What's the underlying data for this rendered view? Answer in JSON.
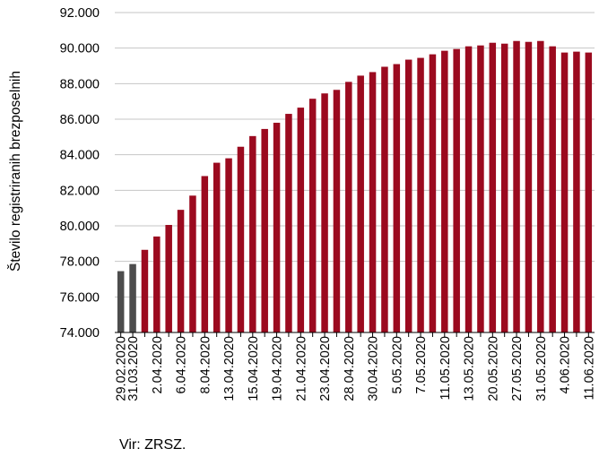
{
  "chart_data": {
    "type": "bar",
    "title": "",
    "xlabel": "",
    "ylabel": "Število registriranih brezposelnih",
    "ylim": [
      74000,
      92000
    ],
    "ytick_step": 2000,
    "ytick_labels": [
      "74.000",
      "76.000",
      "78.000",
      "80.000",
      "82.000",
      "84.000",
      "86.000",
      "88.000",
      "90.000",
      "92.000"
    ],
    "grid": true,
    "legend": "none",
    "categories": [
      "29.02.2020",
      "31.03.2020",
      "",
      "2.04.2020",
      "",
      "6.04.2020",
      "",
      "8.04.2020",
      "",
      "13.04.2020",
      "",
      "15.04.2020",
      "",
      "19.04.2020",
      "",
      "21.04.2020",
      "",
      "23.04.2020",
      "",
      "28.04.2020",
      "",
      "30.04.2020",
      "",
      "5.05.2020",
      "",
      "7.05.2020",
      "",
      "11.05.2020",
      "",
      "13.05.2020",
      "",
      "20.05.2020",
      "",
      "27.05.2020",
      "",
      "31.05.2020",
      "",
      "4.06.2020",
      "",
      "11.06.2020"
    ],
    "values": [
      77450,
      77850,
      78650,
      79400,
      80050,
      80900,
      81700,
      82800,
      83550,
      83800,
      84450,
      85050,
      85450,
      85800,
      86300,
      86650,
      87150,
      87450,
      87650,
      88100,
      88450,
      88650,
      88950,
      89100,
      89350,
      89450,
      89650,
      89850,
      89950,
      90100,
      90150,
      90300,
      90250,
      90400,
      90350,
      90400,
      90100,
      89750,
      89800,
      89750
    ],
    "colors": {
      "highlight": "#9b0a1f",
      "baseline": "#4d4d4d",
      "grid": "#c6c6c6"
    },
    "series_colors": [
      "baseline",
      "baseline",
      "highlight",
      "highlight",
      "highlight",
      "highlight",
      "highlight",
      "highlight",
      "highlight",
      "highlight",
      "highlight",
      "highlight",
      "highlight",
      "highlight",
      "highlight",
      "highlight",
      "highlight",
      "highlight",
      "highlight",
      "highlight",
      "highlight",
      "highlight",
      "highlight",
      "highlight",
      "highlight",
      "highlight",
      "highlight",
      "highlight",
      "highlight",
      "highlight",
      "highlight",
      "highlight",
      "highlight",
      "highlight",
      "highlight",
      "highlight",
      "highlight",
      "highlight",
      "highlight",
      "highlight"
    ]
  },
  "source": "Vir: ZRSZ."
}
